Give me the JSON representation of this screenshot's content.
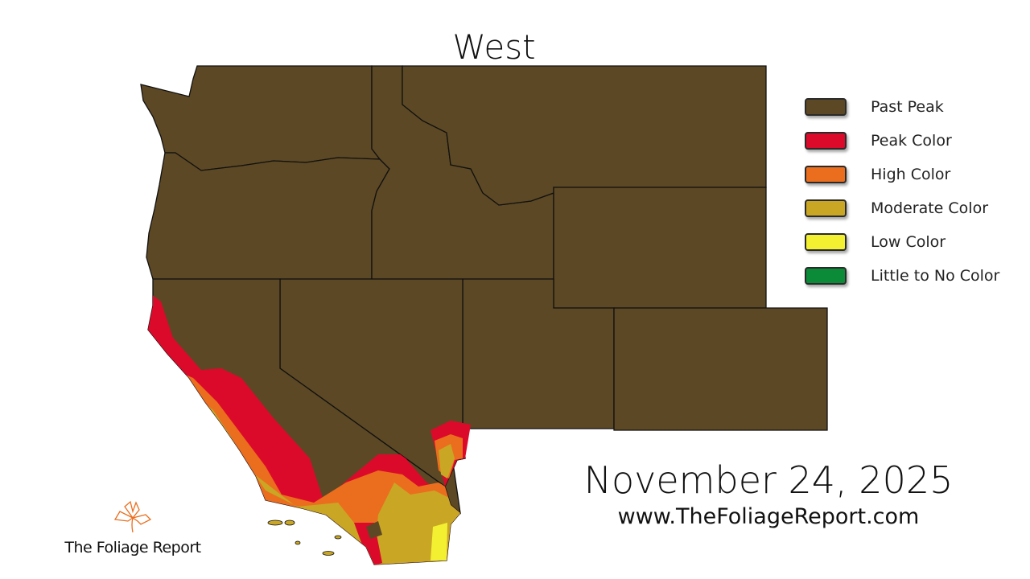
{
  "title": "West",
  "date": "November 24, 2025",
  "website": "www.TheFoliageReport.com",
  "logo": {
    "text": "The Foliage Report",
    "icon": "maple-leaf-outline-icon"
  },
  "legend": [
    {
      "label": "Past Peak",
      "color": "#5c4824"
    },
    {
      "label": "Peak Color",
      "color": "#dc0a2a"
    },
    {
      "label": "High Color",
      "color": "#ea6e1e"
    },
    {
      "label": "Moderate Color",
      "color": "#c9a724"
    },
    {
      "label": "Low Color",
      "color": "#f3f032"
    },
    {
      "label": "Little to No Color",
      "color": "#0b8a38"
    }
  ]
}
